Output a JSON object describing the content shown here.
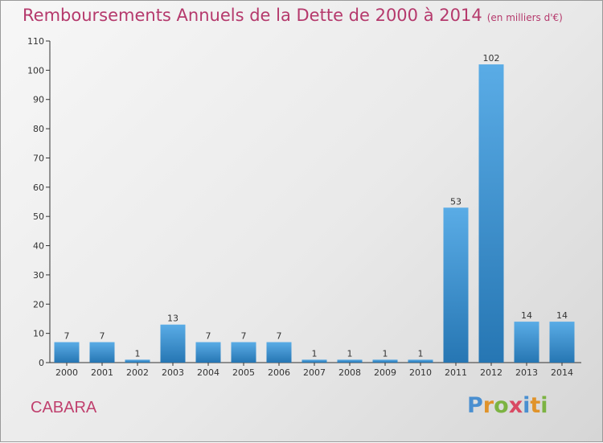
{
  "title": "Remboursements Annuels de la Dette de 2000 à 2014",
  "unit": "(en milliers d'€)",
  "commune": "CABARA",
  "logo": {
    "letters": [
      "P",
      "r",
      "o",
      "x",
      "i",
      "t",
      "i"
    ]
  },
  "colors": {
    "title": "#b5396c",
    "bar_top": "#5aace6",
    "bar_bottom": "#2676b3"
  },
  "chart_data": {
    "type": "bar",
    "categories": [
      "2000",
      "2001",
      "2002",
      "2003",
      "2004",
      "2005",
      "2006",
      "2007",
      "2008",
      "2009",
      "2010",
      "2011",
      "2012",
      "2013",
      "2014"
    ],
    "values": [
      7,
      7,
      1,
      13,
      7,
      7,
      7,
      1,
      1,
      1,
      1,
      53,
      102,
      14,
      14
    ],
    "ylim": [
      0,
      110
    ],
    "yticks": [
      0,
      10,
      20,
      30,
      40,
      50,
      60,
      70,
      80,
      90,
      100,
      110
    ],
    "grid": false,
    "data_labels": true
  }
}
